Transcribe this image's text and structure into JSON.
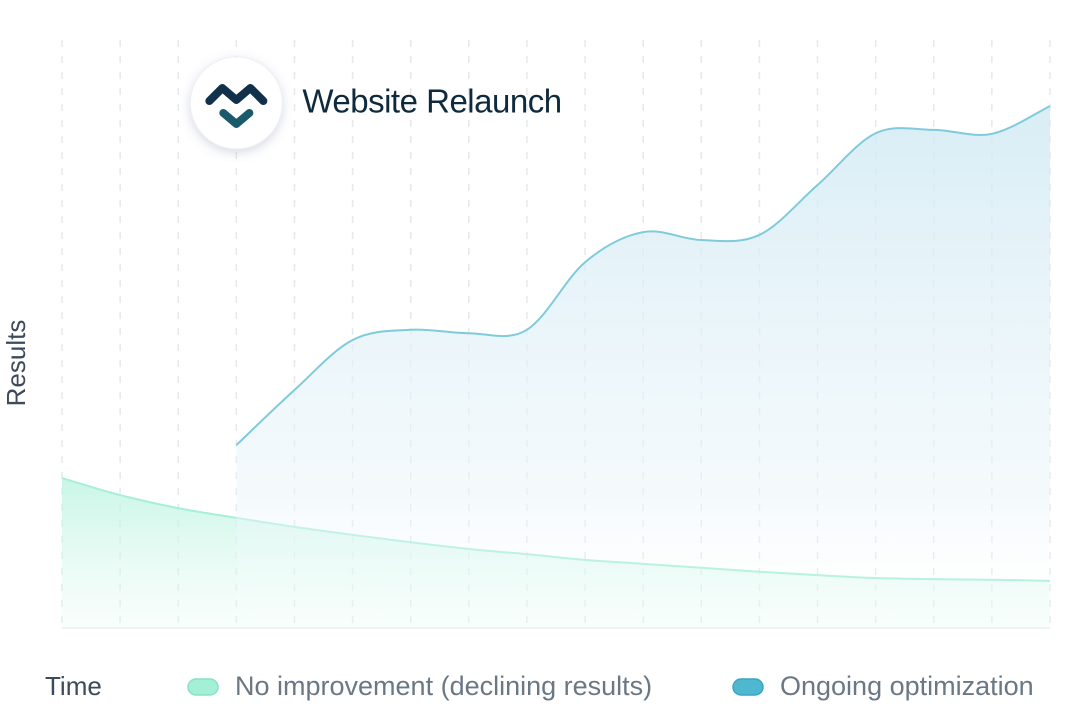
{
  "chart_data": {
    "type": "area",
    "annotation": "Website Relaunch",
    "x_label": "Time",
    "y_label": "Results",
    "categories": [
      null,
      null,
      null,
      null,
      null,
      null,
      null,
      null,
      null,
      null,
      null,
      null,
      null,
      null,
      null,
      null,
      null,
      null
    ],
    "ylim": [
      0,
      100
    ],
    "grid": true,
    "series": [
      {
        "name": "No improvement (declining results)",
        "color": "#a3f0d6",
        "values": [
          26.4,
          23.4,
          21.1,
          19.4,
          17.8,
          16.4,
          15.1,
          13.9,
          13.0,
          12.0,
          11.3,
          10.6,
          9.9,
          9.3,
          8.8,
          8.6,
          8.5,
          8.3
        ]
      },
      {
        "name": "Ongoing optimization",
        "color": "#4fb8d0",
        "values": [
          null,
          null,
          null,
          32.2,
          41.9,
          50.7,
          52.5,
          51.9,
          52.5,
          64.4,
          69.7,
          68.3,
          69.2,
          78.0,
          87.1,
          87.7,
          87.0,
          91.9
        ]
      }
    ]
  }
}
